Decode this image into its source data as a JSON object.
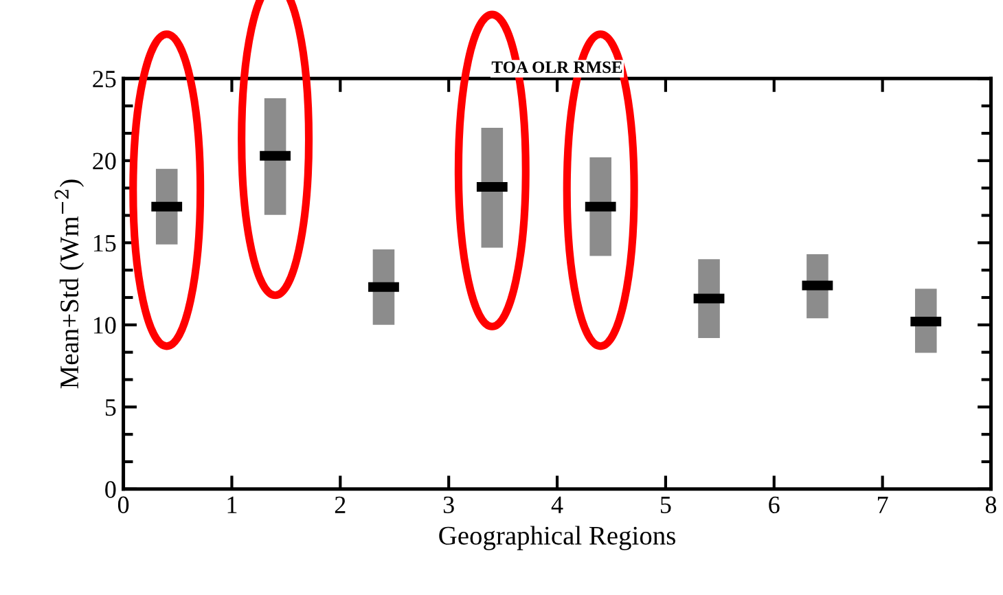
{
  "chart_data": {
    "type": "bar",
    "title": "TOA OLR RMSE",
    "xlabel": "Geographical Regions",
    "ylabel": "Mean+Std (Wm$^{−2}$)",
    "x": [
      0.4,
      1.4,
      2.4,
      3.4,
      4.4,
      5.4,
      6.4,
      7.4
    ],
    "series": [
      {
        "color": "#8c8c8c",
        "base": [
          14.9,
          16.7,
          10.0,
          14.7,
          14.2,
          9.2,
          10.4,
          8.3
        ],
        "values": [
          4.6,
          7.1,
          4.6,
          7.3,
          6.0,
          4.8,
          3.9,
          3.9
        ]
      },
      {
        "type": "scatter",
        "color": "#000000",
        "marker": "square",
        "values": [
          17.2,
          20.3,
          12.3,
          18.4,
          17.2,
          11.6,
          12.4,
          10.2
        ]
      }
    ],
    "xlim": [
      0,
      8
    ],
    "xticks": [
      0,
      1,
      2,
      3,
      4,
      5,
      6,
      7,
      8
    ],
    "ylim": [
      0,
      25
    ],
    "yticks": [
      0,
      5,
      10,
      15,
      20,
      25
    ],
    "grid": false,
    "legend": false
  }
}
